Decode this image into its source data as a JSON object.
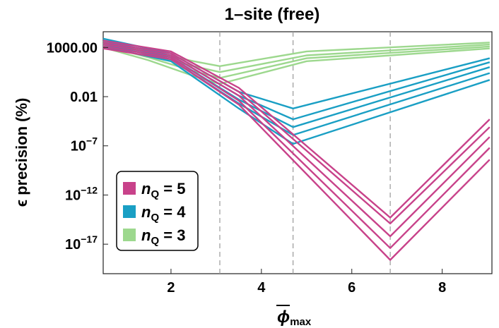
{
  "chart_data": {
    "type": "line",
    "title": "1–site   (free)",
    "xlabel": "ϕmax",
    "ylabel": "ϵ precision (%)",
    "x_ticks": [
      2,
      4,
      6,
      8
    ],
    "xlim": [
      0.5,
      9.1
    ],
    "y_scale": "log",
    "ylim_log10": [
      -20,
      4.6
    ],
    "y_ticks": [
      {
        "log10": 3,
        "label": "1000.00"
      },
      {
        "log10": -2,
        "label": "0.01"
      },
      {
        "log10": -7,
        "base": "10",
        "exp": "−7"
      },
      {
        "log10": -12,
        "base": "10",
        "exp": "−12"
      },
      {
        "log10": -17,
        "base": "10",
        "exp": "−17"
      }
    ],
    "vlines": [
      3.08,
      4.7,
      6.85
    ],
    "legend_position": "bottom-left",
    "legend": [
      {
        "var": "n",
        "sub": "Q",
        "rel": " = 5",
        "color": "#c8428a"
      },
      {
        "var": "n",
        "sub": "Q",
        "rel": " = 4",
        "color": "#1a9fc4"
      },
      {
        "var": "n",
        "sub": "Q",
        "rel": " = 3",
        "color": "#9dd88e"
      }
    ],
    "series": [
      {
        "group": "5",
        "color": "#c8428a",
        "points": [
          [
            0.5,
            3.7
          ],
          [
            2,
            2.6
          ],
          [
            3.5,
            -1.1
          ],
          [
            6.85,
            -14.3
          ],
          [
            9.05,
            -4.3
          ]
        ]
      },
      {
        "group": "5",
        "color": "#c8428a",
        "points": [
          [
            0.5,
            3.5
          ],
          [
            2,
            2.4
          ],
          [
            3.5,
            -1.5
          ],
          [
            6.85,
            -14.9
          ],
          [
            9.05,
            -5.1
          ]
        ]
      },
      {
        "group": "5",
        "color": "#c8428a",
        "points": [
          [
            0.5,
            3.3
          ],
          [
            2,
            2.2
          ],
          [
            3.5,
            -1.9
          ],
          [
            6.85,
            -16.2
          ],
          [
            9.05,
            -6.1
          ]
        ]
      },
      {
        "group": "5",
        "color": "#c8428a",
        "points": [
          [
            0.5,
            3.1
          ],
          [
            2,
            2.0
          ],
          [
            3.5,
            -2.4
          ],
          [
            6.85,
            -17.4
          ],
          [
            9.05,
            -7.2
          ]
        ]
      },
      {
        "group": "5",
        "color": "#c8428a",
        "points": [
          [
            0.5,
            2.9
          ],
          [
            2,
            1.8
          ],
          [
            3.5,
            -2.8
          ],
          [
            6.85,
            -18.6
          ],
          [
            9.05,
            -8.4
          ]
        ]
      },
      {
        "group": "4",
        "color": "#1a9fc4",
        "points": [
          [
            0.5,
            3.9
          ],
          [
            2,
            2.4
          ],
          [
            3.5,
            -1.5
          ],
          [
            4.7,
            -3.2
          ],
          [
            9.05,
            1.9
          ]
        ]
      },
      {
        "group": "4",
        "color": "#1a9fc4",
        "points": [
          [
            0.5,
            3.7
          ],
          [
            2,
            2.2
          ],
          [
            3.5,
            -1.9
          ],
          [
            4.7,
            -4.3
          ],
          [
            9.05,
            1.5
          ]
        ]
      },
      {
        "group": "4",
        "color": "#1a9fc4",
        "points": [
          [
            0.5,
            3.5
          ],
          [
            2,
            2.0
          ],
          [
            3.5,
            -2.3
          ],
          [
            4.7,
            -5.1
          ],
          [
            9.05,
            1.0
          ]
        ]
      },
      {
        "group": "4",
        "color": "#1a9fc4",
        "points": [
          [
            0.5,
            3.3
          ],
          [
            2,
            1.8
          ],
          [
            3.5,
            -2.7
          ],
          [
            4.7,
            -5.9
          ],
          [
            9.05,
            0.4
          ]
        ]
      },
      {
        "group": "4",
        "color": "#1a9fc4",
        "points": [
          [
            0.5,
            3.1
          ],
          [
            2,
            1.6
          ],
          [
            3.5,
            -3.2
          ],
          [
            4.7,
            -6.8
          ],
          [
            9.05,
            -0.3
          ]
        ]
      },
      {
        "group": "3",
        "color": "#9dd88e",
        "points": [
          [
            0.5,
            3.6
          ],
          [
            1.5,
            2.6
          ],
          [
            2.5,
            1.6
          ],
          [
            3.08,
            1.1
          ],
          [
            5,
            2.6
          ],
          [
            9.05,
            3.5
          ]
        ]
      },
      {
        "group": "3",
        "color": "#9dd88e",
        "points": [
          [
            0.5,
            3.4
          ],
          [
            1.5,
            2.3
          ],
          [
            2.5,
            1.1
          ],
          [
            3.08,
            0.5
          ],
          [
            5,
            2.2
          ],
          [
            9.05,
            3.3
          ]
        ]
      },
      {
        "group": "3",
        "color": "#9dd88e",
        "points": [
          [
            0.5,
            3.2
          ],
          [
            1.5,
            2.0
          ],
          [
            2.5,
            0.6
          ],
          [
            3.08,
            -0.1
          ],
          [
            5,
            1.9
          ],
          [
            9.05,
            3.1
          ]
        ]
      },
      {
        "group": "3",
        "color": "#9dd88e",
        "points": [
          [
            0.5,
            3.0
          ],
          [
            1.5,
            1.7
          ],
          [
            2.5,
            0.1
          ],
          [
            3.08,
            -0.7
          ],
          [
            5,
            1.6
          ],
          [
            9.05,
            2.9
          ]
        ]
      }
    ]
  }
}
